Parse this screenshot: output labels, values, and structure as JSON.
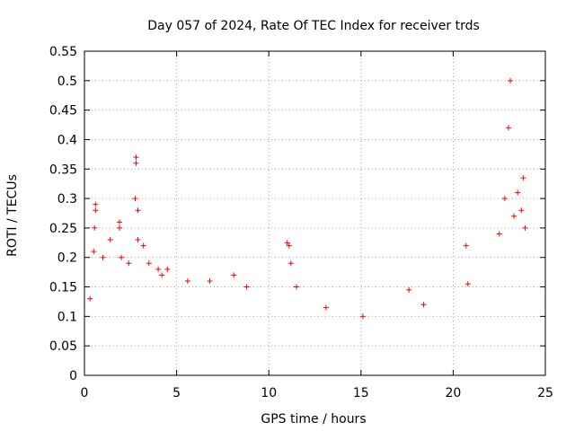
{
  "chart_data": {
    "type": "scatter",
    "title": "Day 057 of 2024, Rate Of TEC Index for receiver trds",
    "xlabel": "GPS time / hours",
    "ylabel": "ROTI / TECUs",
    "xlim": [
      0,
      25
    ],
    "ylim": [
      0,
      0.55
    ],
    "xticks": [
      "0",
      "5",
      "10",
      "15",
      "20",
      "25"
    ],
    "yticks": [
      "0",
      "0.05",
      "0.1",
      "0.15",
      "0.2",
      "0.25",
      "0.3",
      "0.35",
      "0.4",
      "0.45",
      "0.5",
      "0.55"
    ],
    "grid": true,
    "marker": "+",
    "marker_color": "#ff0000",
    "series": [
      {
        "values": [
          [
            0.6,
            0.29
          ],
          [
            0.6,
            0.28
          ],
          [
            0.55,
            0.25
          ],
          [
            0.5,
            0.21
          ],
          [
            1.4,
            0.23
          ],
          [
            1.9,
            0.26
          ],
          [
            1.9,
            0.25
          ],
          [
            2.8,
            0.37
          ],
          [
            2.8,
            0.36
          ],
          [
            2.75,
            0.3
          ],
          [
            2.9,
            0.28
          ],
          [
            2.9,
            0.23
          ],
          [
            3.2,
            0.22
          ],
          [
            4.0,
            0.18
          ],
          [
            4.5,
            0.18
          ],
          [
            5.6,
            0.16
          ],
          [
            6.8,
            0.16
          ],
          [
            8.1,
            0.17
          ],
          [
            8.8,
            0.15
          ],
          [
            11.0,
            0.225
          ],
          [
            11.1,
            0.22
          ],
          [
            11.2,
            0.19
          ],
          [
            11.5,
            0.15
          ],
          [
            13.1,
            0.115
          ],
          [
            15.1,
            0.1
          ],
          [
            17.6,
            0.145
          ],
          [
            18.4,
            0.12
          ],
          [
            20.7,
            0.22
          ],
          [
            20.8,
            0.155
          ],
          [
            22.5,
            0.24
          ],
          [
            22.8,
            0.3
          ],
          [
            23.0,
            0.42
          ],
          [
            23.1,
            0.5
          ],
          [
            23.3,
            0.27
          ],
          [
            23.5,
            0.31
          ],
          [
            23.7,
            0.28
          ],
          [
            23.8,
            0.335
          ],
          [
            23.9,
            0.25
          ],
          [
            0.3,
            0.13
          ],
          [
            1.0,
            0.2
          ],
          [
            2.0,
            0.2
          ],
          [
            2.4,
            0.19
          ],
          [
            3.5,
            0.19
          ],
          [
            4.2,
            0.17
          ]
        ]
      }
    ]
  }
}
